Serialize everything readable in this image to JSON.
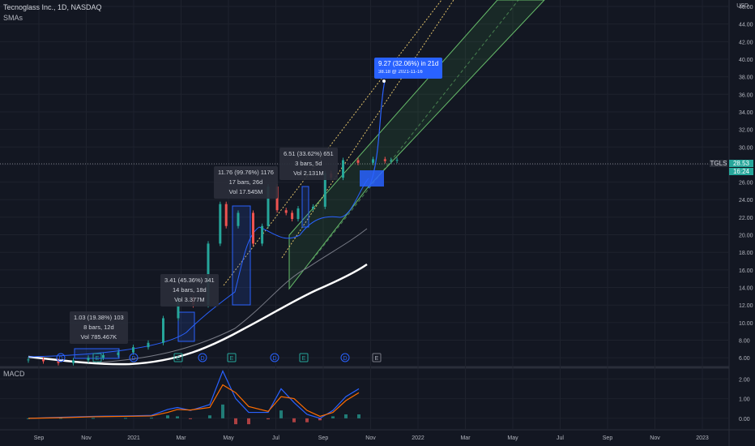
{
  "header": {
    "title": "Tecnoglass Inc., 1D, NASDAQ",
    "indicator": "SMAs"
  },
  "macd_label": "MACD",
  "currency": "USD",
  "ticker_tag": "TGLS",
  "last_price": "28.53",
  "countdown": "16:24",
  "colors": {
    "up": "#26a69a",
    "down": "#ef5350",
    "accent": "#2962ff",
    "background": "#131722"
  },
  "annotations": [
    {
      "name": "measure-1",
      "line1": "1.03 (19.38%) 103",
      "line2": "8 bars, 12d",
      "line3": "Vol 785.467K"
    },
    {
      "name": "measure-2",
      "line1": "3.41 (45.36%) 341",
      "line2": "14 bars, 18d",
      "line3": "Vol 3.377M"
    },
    {
      "name": "measure-3",
      "line1": "11.76 (99.76%) 1176",
      "line2": "17 bars, 26d",
      "line3": "Vol 17.545M"
    },
    {
      "name": "measure-4",
      "line1": "6.51 (33.62%) 651",
      "line2": "3 bars, 5d",
      "line3": "Vol 2.131M"
    }
  ],
  "projection": {
    "line1": "9.27 (32.06%) in 21d",
    "line2": "38.18 @ 2021-11-16"
  },
  "events": [
    "D",
    "E",
    "D",
    "E",
    "D",
    "E",
    "D",
    "E",
    "D",
    "E"
  ],
  "chart_data": [
    {
      "type": "line",
      "title": "Tecnoglass Inc., 1D, NASDAQ",
      "ylabel": "USD",
      "ylim": [
        5,
        46
      ],
      "y_ticks": [
        "46.00",
        "44.00",
        "42.00",
        "40.00",
        "38.00",
        "36.00",
        "34.00",
        "32.00",
        "30.00",
        "28.00",
        "26.00",
        "24.00",
        "22.00",
        "20.00",
        "18.00",
        "16.00",
        "14.00",
        "12.00",
        "10.00",
        "8.00",
        "6.00"
      ],
      "x_ticks": [
        "Sep",
        "Nov",
        "2021",
        "Mar",
        "May",
        "Jul",
        "Sep",
        "Nov",
        "2022",
        "Mar",
        "May",
        "Jul",
        "Sep",
        "Nov",
        "2023"
      ],
      "grid": true,
      "series": [
        {
          "name": "TGLS",
          "x": [
            0,
            0.5,
            1,
            1.5,
            2,
            2.5,
            3,
            3.5,
            4,
            4.5,
            5,
            5.5,
            6,
            6.4,
            6.6,
            7,
            7.5,
            7.8,
            8,
            8.3,
            8.6,
            8.8,
            9,
            9.5,
            9.9,
            10.1,
            10.5,
            11,
            11.5,
            11.9,
            12.1,
            12.3
          ],
          "values": [
            5.8,
            5.6,
            5.4,
            5.7,
            6.0,
            6.3,
            6.6,
            7.2,
            7.7,
            10.5,
            12.8,
            12.0,
            19.0,
            23.5,
            21.0,
            22.5,
            19.0,
            21.0,
            25.5,
            22.8,
            22.5,
            21.8,
            23.0,
            23.2,
            27.0,
            26.5,
            28.5,
            28.2,
            28.6,
            28.4,
            28.5,
            28.53
          ]
        },
        {
          "name": "SMA fast",
          "values": []
        },
        {
          "name": "SMA 50",
          "values": []
        },
        {
          "name": "SMA 200",
          "values": []
        }
      ]
    },
    {
      "type": "line",
      "title": "MACD",
      "ylim": [
        -0.5,
        2.3
      ],
      "y_ticks": [
        "2.00",
        "1.00",
        "0.00"
      ],
      "grid": true,
      "series": [
        {
          "name": "MACD",
          "x": [
            0,
            1,
            2,
            3,
            3.8,
            4.3,
            4.6,
            5,
            5.6,
            6,
            6.4,
            6.8,
            7.4,
            7.8,
            8.2,
            8.6,
            9,
            9.4,
            9.8,
            10.2
          ],
          "values": [
            0.0,
            0.05,
            0.1,
            0.12,
            0.15,
            0.45,
            0.55,
            0.4,
            0.7,
            2.4,
            1.0,
            0.3,
            0.3,
            1.5,
            0.8,
            0.2,
            0.0,
            0.4,
            1.1,
            1.5
          ]
        },
        {
          "name": "Signal",
          "x": [
            0,
            1,
            2,
            3,
            3.8,
            4.3,
            4.6,
            5,
            5.6,
            6,
            6.4,
            6.8,
            7.4,
            7.8,
            8.2,
            8.6,
            9,
            9.4,
            9.8,
            10.2
          ],
          "values": [
            0.0,
            0.03,
            0.08,
            0.1,
            0.12,
            0.3,
            0.45,
            0.42,
            0.55,
            1.7,
            1.3,
            0.6,
            0.35,
            1.1,
            1.0,
            0.4,
            0.1,
            0.3,
            0.9,
            1.3
          ]
        }
      ]
    }
  ]
}
